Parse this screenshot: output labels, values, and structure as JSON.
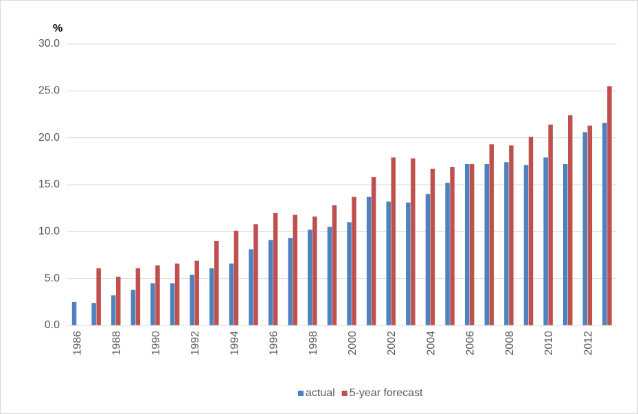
{
  "chart_data": {
    "type": "bar",
    "ylabel": "%",
    "categories": [
      "1986",
      null,
      "1988",
      null,
      "1990",
      null,
      "1992",
      null,
      "1994",
      null,
      "1996",
      null,
      "1998",
      null,
      "2000",
      null,
      "2002",
      null,
      "2004",
      null,
      "2006",
      null,
      "2008",
      null,
      "2010",
      null,
      "2012",
      null
    ],
    "series": [
      {
        "name": "actual",
        "color": "#4f81bd",
        "values": [
          2.5,
          2.4,
          3.2,
          3.8,
          4.5,
          4.5,
          5.4,
          6.1,
          6.6,
          8.1,
          9.1,
          9.3,
          10.2,
          10.5,
          11.0,
          13.7,
          13.2,
          13.1,
          14.0,
          15.2,
          17.2,
          17.2,
          17.4,
          17.1,
          17.9,
          17.2,
          20.6,
          21.6
        ]
      },
      {
        "name": "5-year forecast",
        "color": "#c0504d",
        "values": [
          null,
          6.1,
          5.2,
          6.1,
          6.4,
          6.6,
          6.9,
          9.0,
          10.1,
          10.8,
          12.0,
          11.8,
          11.6,
          12.8,
          13.7,
          15.8,
          17.9,
          17.8,
          16.7,
          16.9,
          17.2,
          19.3,
          19.2,
          20.1,
          21.4,
          22.4,
          21.3,
          25.5
        ]
      }
    ],
    "ylim": [
      0,
      30
    ],
    "yticks": [
      {
        "value": 0,
        "label": "0.0"
      },
      {
        "value": 5,
        "label": "5.0"
      },
      {
        "value": 10,
        "label": "10.0"
      },
      {
        "value": 15,
        "label": "15.0"
      },
      {
        "value": 20,
        "label": "20.0"
      },
      {
        "value": 25,
        "label": "25.0"
      },
      {
        "value": 30,
        "label": "30.0"
      }
    ],
    "grid": true,
    "legend": "bottom"
  }
}
